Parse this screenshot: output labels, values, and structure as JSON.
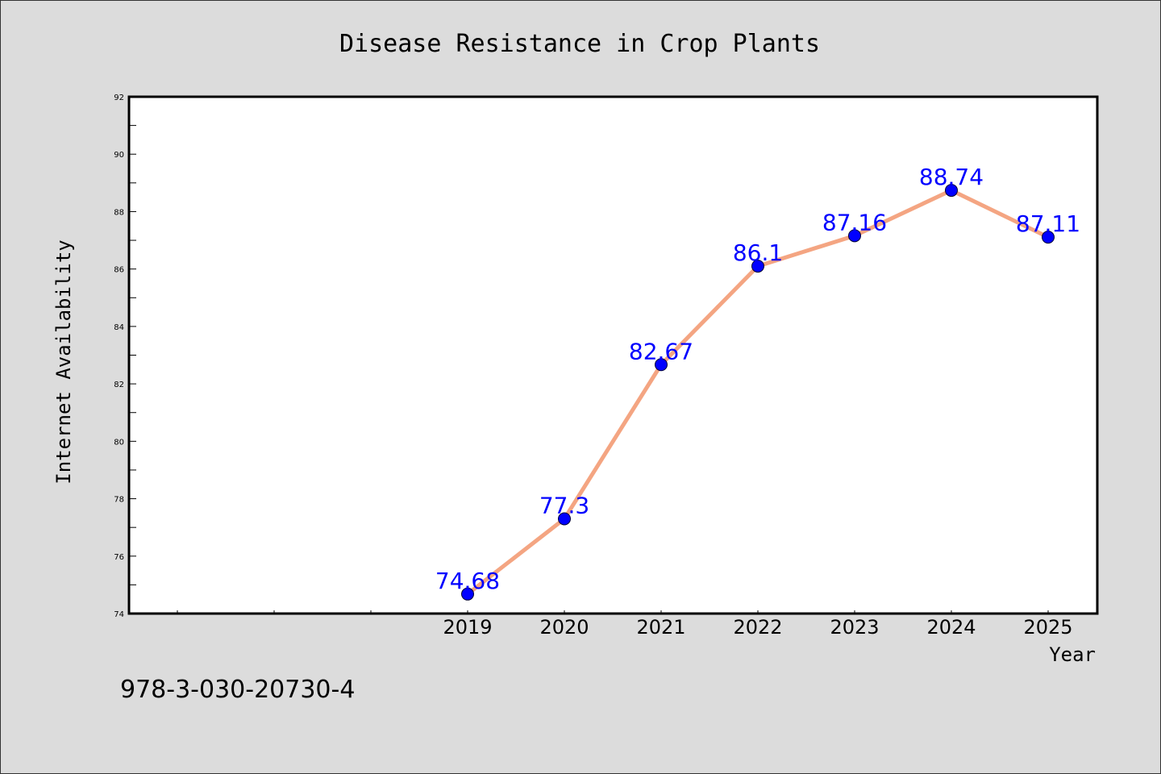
{
  "colors": {
    "background": "#dcdcdc",
    "plot_background": "#ffffff",
    "line": "#f4a582",
    "marker": "#0000ff",
    "data_label": "#0000ff",
    "axis": "#000000",
    "text": "#000000"
  },
  "footer_text": "978-3-030-20730-4",
  "chart_data": {
    "type": "line",
    "title": "Disease Resistance in Crop Plants",
    "xlabel": "Year",
    "ylabel": "Internet Availability",
    "categories": [
      "2019",
      "2020",
      "2021",
      "2022",
      "2023",
      "2024",
      "2025"
    ],
    "series": [
      {
        "values": [
          74.68,
          77.3,
          82.67,
          86.1,
          87.16,
          88.74,
          87.11
        ],
        "labels": [
          "74.68",
          "77.3",
          "82.67",
          "86.1",
          "87.16",
          "88.74",
          "87.11"
        ]
      }
    ],
    "ylim": [
      74,
      92
    ],
    "y_ticks": [
      "74",
      "76",
      "78",
      "80",
      "82",
      "84",
      "86",
      "88",
      "90",
      "92"
    ],
    "grid": false,
    "legend": "none"
  }
}
